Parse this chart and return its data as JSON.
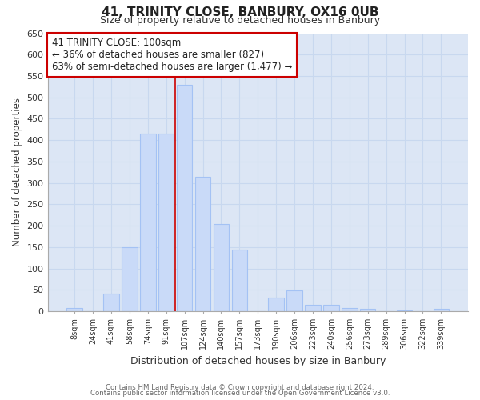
{
  "title": "41, TRINITY CLOSE, BANBURY, OX16 0UB",
  "subtitle": "Size of property relative to detached houses in Banbury",
  "xlabel": "Distribution of detached houses by size in Banbury",
  "ylabel": "Number of detached properties",
  "bar_color": "#c9daf8",
  "bar_edge_color": "#a4c2f4",
  "plot_bg_color": "#dce6f5",
  "categories": [
    "8sqm",
    "24sqm",
    "41sqm",
    "58sqm",
    "74sqm",
    "91sqm",
    "107sqm",
    "124sqm",
    "140sqm",
    "157sqm",
    "173sqm",
    "190sqm",
    "206sqm",
    "223sqm",
    "240sqm",
    "256sqm",
    "273sqm",
    "289sqm",
    "306sqm",
    "322sqm",
    "339sqm"
  ],
  "values": [
    8,
    0,
    42,
    150,
    415,
    415,
    530,
    315,
    205,
    145,
    0,
    32,
    48,
    15,
    15,
    8,
    5,
    0,
    2,
    0,
    5
  ],
  "ylim": [
    0,
    650
  ],
  "yticks": [
    0,
    50,
    100,
    150,
    200,
    250,
    300,
    350,
    400,
    450,
    500,
    550,
    600,
    650
  ],
  "vline_color": "#cc0000",
  "vline_index": 6,
  "annotation_line1": "41 TRINITY CLOSE: 100sqm",
  "annotation_line2": "← 36% of detached houses are smaller (827)",
  "annotation_line3": "63% of semi-detached houses are larger (1,477) →",
  "annotation_box_color": "#ffffff",
  "annotation_box_edge": "#cc0000",
  "footer1": "Contains HM Land Registry data © Crown copyright and database right 2024.",
  "footer2": "Contains public sector information licensed under the Open Government Licence v3.0.",
  "background_color": "#ffffff",
  "grid_color": "#c8d8ef"
}
